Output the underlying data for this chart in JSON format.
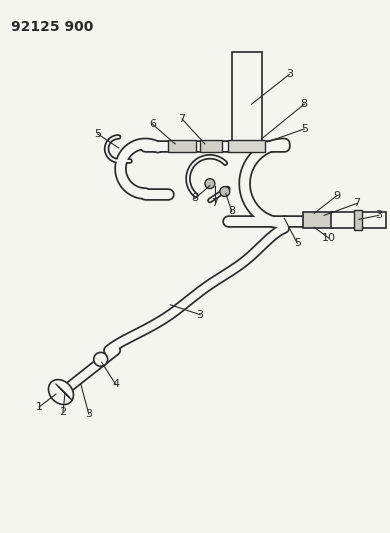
{
  "title": "92125 900",
  "bg_color": "#f5f5f0",
  "line_color": "#2a2a2a",
  "title_fontsize": 10,
  "label_fontsize": 8,
  "fig_w": 3.9,
  "fig_h": 5.33,
  "dpi": 100
}
